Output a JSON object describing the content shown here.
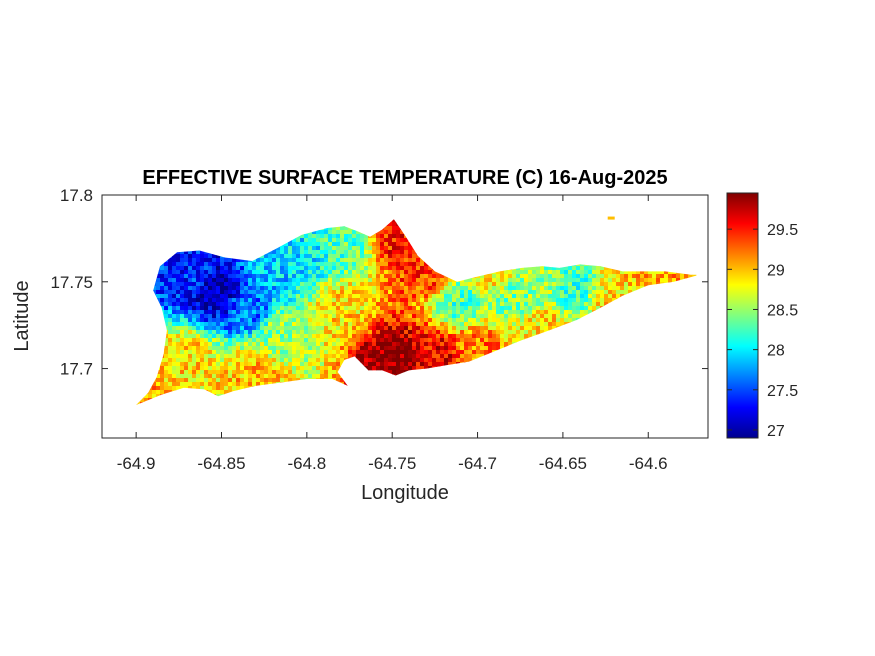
{
  "chart_data": {
    "type": "heatmap",
    "title": "EFFECTIVE SURFACE TEMPERATURE (C) 16-Aug-2025",
    "xlabel": "Longitude",
    "ylabel": "Latitude",
    "xlim": [
      -64.92,
      -64.565
    ],
    "ylim": [
      17.66,
      17.8
    ],
    "x_ticks": [
      "-64.9",
      "-64.85",
      "-64.8",
      "-64.75",
      "-64.7",
      "-64.65",
      "-64.6"
    ],
    "x_tick_values": [
      -64.9,
      -64.85,
      -64.8,
      -64.75,
      -64.7,
      -64.65,
      -64.6
    ],
    "y_ticks": [
      "17.7",
      "17.75",
      "17.8"
    ],
    "y_tick_values": [
      17.7,
      17.75,
      17.8
    ],
    "colorbar": {
      "colormap": "jet",
      "range": [
        26.9,
        29.95
      ],
      "ticks": [
        "27",
        "27.5",
        "28",
        "28.5",
        "29",
        "29.5"
      ],
      "tick_values": [
        27,
        27.5,
        28,
        28.5,
        29,
        29.5
      ]
    },
    "region_outline": [
      [
        -64.9,
        17.679
      ],
      [
        -64.893,
        17.686
      ],
      [
        -64.888,
        17.695
      ],
      [
        -64.884,
        17.708
      ],
      [
        -64.882,
        17.722
      ],
      [
        -64.885,
        17.735
      ],
      [
        -64.89,
        17.745
      ],
      [
        -64.886,
        17.759
      ],
      [
        -64.876,
        17.767
      ],
      [
        -64.863,
        17.768
      ],
      [
        -64.848,
        17.764
      ],
      [
        -64.832,
        17.762
      ],
      [
        -64.818,
        17.769
      ],
      [
        -64.803,
        17.777
      ],
      [
        -64.788,
        17.781
      ],
      [
        -64.778,
        17.782
      ],
      [
        -64.77,
        17.779
      ],
      [
        -64.763,
        17.776
      ],
      [
        -64.756,
        17.78
      ],
      [
        -64.749,
        17.786
      ],
      [
        -64.742,
        17.776
      ],
      [
        -64.735,
        17.765
      ],
      [
        -64.725,
        17.756
      ],
      [
        -64.712,
        17.75
      ],
      [
        -64.7,
        17.753
      ],
      [
        -64.687,
        17.756
      ],
      [
        -64.674,
        17.758
      ],
      [
        -64.662,
        17.759
      ],
      [
        -64.652,
        17.758
      ],
      [
        -64.64,
        17.76
      ],
      [
        -64.628,
        17.759
      ],
      [
        -64.615,
        17.756
      ],
      [
        -64.603,
        17.756
      ],
      [
        -64.59,
        17.756
      ],
      [
        -64.575,
        17.754
      ],
      [
        -64.57,
        17.754
      ],
      [
        -64.585,
        17.75
      ],
      [
        -64.6,
        17.748
      ],
      [
        -64.615,
        17.742
      ],
      [
        -64.628,
        17.735
      ],
      [
        -64.642,
        17.728
      ],
      [
        -64.658,
        17.722
      ],
      [
        -64.675,
        17.716
      ],
      [
        -64.69,
        17.71
      ],
      [
        -64.705,
        17.704
      ],
      [
        -64.718,
        17.702
      ],
      [
        -64.73,
        17.7
      ],
      [
        -64.74,
        17.699
      ],
      [
        -64.748,
        17.696
      ],
      [
        -64.756,
        17.699
      ],
      [
        -64.764,
        17.699
      ],
      [
        -64.772,
        17.707
      ],
      [
        -64.778,
        17.705
      ],
      [
        -64.782,
        17.698
      ],
      [
        -64.776,
        17.69
      ],
      [
        -64.785,
        17.694
      ],
      [
        -64.8,
        17.694
      ],
      [
        -64.815,
        17.692
      ],
      [
        -64.83,
        17.69
      ],
      [
        -64.843,
        17.687
      ],
      [
        -64.852,
        17.684
      ],
      [
        -64.86,
        17.688
      ],
      [
        -64.872,
        17.689
      ],
      [
        -64.885,
        17.685
      ]
    ],
    "temperature_sources": [
      {
        "lon": -64.852,
        "lat": 17.745,
        "temp": 27.0
      },
      {
        "lon": -64.868,
        "lat": 17.753,
        "temp": 27.4
      },
      {
        "lon": -64.835,
        "lat": 17.735,
        "temp": 27.6
      },
      {
        "lon": -64.82,
        "lat": 17.758,
        "temp": 27.9
      },
      {
        "lon": -64.8,
        "lat": 17.765,
        "temp": 28.0
      },
      {
        "lon": -64.78,
        "lat": 17.77,
        "temp": 28.3
      },
      {
        "lon": -64.815,
        "lat": 17.72,
        "temp": 28.5
      },
      {
        "lon": -64.87,
        "lat": 17.705,
        "temp": 28.9
      },
      {
        "lon": -64.895,
        "lat": 17.685,
        "temp": 29.1
      },
      {
        "lon": -64.83,
        "lat": 17.697,
        "temp": 29.0
      },
      {
        "lon": -64.78,
        "lat": 17.735,
        "temp": 28.9
      },
      {
        "lon": -64.745,
        "lat": 17.775,
        "temp": 29.5
      },
      {
        "lon": -64.73,
        "lat": 17.757,
        "temp": 29.4
      },
      {
        "lon": -64.75,
        "lat": 17.705,
        "temp": 29.9
      },
      {
        "lon": -64.725,
        "lat": 17.708,
        "temp": 29.6
      },
      {
        "lon": -64.7,
        "lat": 17.712,
        "temp": 29.2
      },
      {
        "lon": -64.71,
        "lat": 17.737,
        "temp": 28.3
      },
      {
        "lon": -64.68,
        "lat": 17.742,
        "temp": 28.4
      },
      {
        "lon": -64.66,
        "lat": 17.745,
        "temp": 28.5
      },
      {
        "lon": -64.645,
        "lat": 17.746,
        "temp": 28.2
      },
      {
        "lon": -64.66,
        "lat": 17.725,
        "temp": 28.9
      },
      {
        "lon": -64.62,
        "lat": 17.74,
        "temp": 28.9
      },
      {
        "lon": -64.6,
        "lat": 17.752,
        "temp": 29.0
      },
      {
        "lon": -64.578,
        "lat": 17.754,
        "temp": 29.2
      },
      {
        "lon": -64.69,
        "lat": 17.754,
        "temp": 28.8
      }
    ],
    "islet": {
      "lon": -64.622,
      "lat": 17.787,
      "temp": 29.0
    }
  }
}
